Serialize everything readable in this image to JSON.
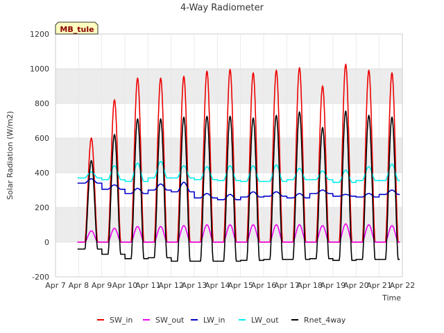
{
  "chart_data": {
    "type": "line",
    "title": "4-Way Radiometer",
    "xlabel": "Time",
    "ylabel": "Solar Radiation (W/m2)",
    "station_label": "MB_tule",
    "xlim": [
      7,
      22
    ],
    "ylim": [
      -200,
      1200
    ],
    "x_ticks": [
      7,
      8,
      9,
      10,
      11,
      12,
      13,
      14,
      15,
      16,
      17,
      18,
      19,
      20,
      21,
      22
    ],
    "x_tick_labels": [
      "Apr 7",
      "Apr 8",
      "Apr 9",
      "Apr 10",
      "Apr 11",
      "Apr 12",
      "Apr 13",
      "Apr 14",
      "Apr 15",
      "Apr 16",
      "Apr 17",
      "Apr 18",
      "Apr 19",
      "Apr 20",
      "Apr 21",
      "Apr 22"
    ],
    "y_ticks": [
      -200,
      0,
      200,
      400,
      600,
      800,
      1000,
      1200
    ],
    "y_tick_labels": [
      "-200",
      "0",
      "200",
      "400",
      "600",
      "800",
      "1000",
      "1200"
    ],
    "band_color": "#ececec",
    "legend_position": "bottom-center",
    "days": [
      8,
      9,
      10,
      11,
      12,
      13,
      14,
      15,
      16,
      17,
      18,
      19,
      20,
      21
    ],
    "peak_time": 0.55,
    "series": [
      {
        "name": "SW_in",
        "color": "#ee0000",
        "night": [
          0,
          0,
          0,
          0,
          0,
          0,
          0,
          0,
          0,
          0,
          0,
          0,
          0,
          0
        ],
        "peak": [
          600,
          820,
          945,
          945,
          955,
          985,
          995,
          975,
          990,
          1005,
          900,
          1025,
          990,
          975
        ]
      },
      {
        "name": "SW_out",
        "color": "#ee00ee",
        "night": [
          0,
          0,
          0,
          0,
          0,
          0,
          0,
          0,
          0,
          0,
          0,
          0,
          0,
          0
        ],
        "peak": [
          65,
          80,
          90,
          90,
          95,
          100,
          100,
          100,
          100,
          100,
          95,
          105,
          100,
          95
        ]
      },
      {
        "name": "LW_in",
        "color": "#0000cc",
        "night": [
          340,
          305,
          280,
          300,
          290,
          255,
          245,
          260,
          265,
          255,
          280,
          265,
          260,
          275
        ],
        "peak": [
          365,
          330,
          310,
          335,
          345,
          280,
          275,
          290,
          290,
          280,
          300,
          275,
          280,
          300
        ]
      },
      {
        "name": "LW_out",
        "color": "#00eeee",
        "night": [
          370,
          360,
          350,
          370,
          370,
          360,
          355,
          350,
          350,
          360,
          360,
          345,
          355,
          355
        ],
        "peak": [
          405,
          440,
          455,
          465,
          440,
          435,
          440,
          440,
          445,
          425,
          410,
          415,
          435,
          450
        ]
      },
      {
        "name": "Rnet_4way",
        "color": "#000000",
        "night": [
          -40,
          -70,
          -95,
          -90,
          -110,
          -110,
          -110,
          -105,
          -100,
          -100,
          -95,
          -105,
          -100,
          -100
        ],
        "peak": [
          470,
          620,
          710,
          710,
          720,
          725,
          725,
          715,
          730,
          750,
          660,
          755,
          730,
          720
        ]
      }
    ],
    "x": [
      7.0,
      7.08,
      7.17,
      7.25,
      7.33,
      7.42,
      7.5,
      7.58,
      7.67,
      7.75,
      7.83,
      7.92,
      8.0,
      8.08,
      8.17,
      8.25,
      8.33,
      8.42,
      8.5,
      8.58,
      8.67,
      8.75,
      8.83,
      8.92,
      9.0,
      9.08,
      9.17,
      9.25,
      9.33,
      9.42,
      9.5,
      9.58,
      9.67,
      9.75,
      9.83,
      9.92,
      10.0,
      10.08,
      10.17,
      10.25,
      10.33,
      10.42,
      10.5,
      10.58,
      10.67,
      10.75,
      10.83,
      10.92,
      11.0,
      11.08,
      11.17,
      11.25,
      11.33,
      11.42,
      11.5,
      11.58,
      11.67,
      11.75,
      11.83,
      11.92,
      12.0,
      12.08,
      12.17,
      12.25,
      12.33,
      12.42,
      12.5,
      12.58,
      12.67,
      12.75,
      12.83,
      12.92,
      13.0,
      13.08,
      13.17,
      13.25,
      13.33,
      13.42,
      13.5,
      13.58,
      13.67,
      13.75,
      13.83,
      13.92,
      14.0,
      14.08,
      14.17,
      14.25,
      14.33,
      14.42,
      14.5,
      14.58,
      14.67,
      14.75,
      14.83,
      14.92,
      15.0,
      15.08,
      15.17,
      15.25,
      15.33,
      15.42,
      15.5,
      15.58,
      15.67,
      15.75,
      15.83,
      15.92,
      16.0,
      16.08,
      16.17,
      16.25,
      16.33,
      16.42,
      16.5,
      16.58,
      16.67,
      16.75,
      16.83,
      16.92,
      17.0,
      17.08,
      17.17,
      17.25,
      17.33,
      17.42,
      17.5,
      17.58,
      17.67,
      17.75,
      17.83,
      17.92,
      18.0,
      18.08,
      18.17,
      18.25,
      18.33,
      18.42,
      18.5,
      18.58,
      18.67,
      18.75,
      18.83,
      18.92,
      19.0,
      19.08,
      19.17,
      19.25,
      19.33,
      19.42,
      19.5,
      19.58,
      19.67,
      19.75,
      19.83,
      19.92,
      20.0,
      20.08,
      20.17,
      20.25,
      20.33,
      20.42,
      20.5,
      20.58,
      20.67,
      20.75,
      20.83,
      20.92,
      21.0,
      21.08,
      21.17,
      21.25,
      21.33,
      21.42,
      21.5,
      21.58,
      21.67,
      21.75,
      21.83,
      21.92,
      22.0
    ]
  }
}
